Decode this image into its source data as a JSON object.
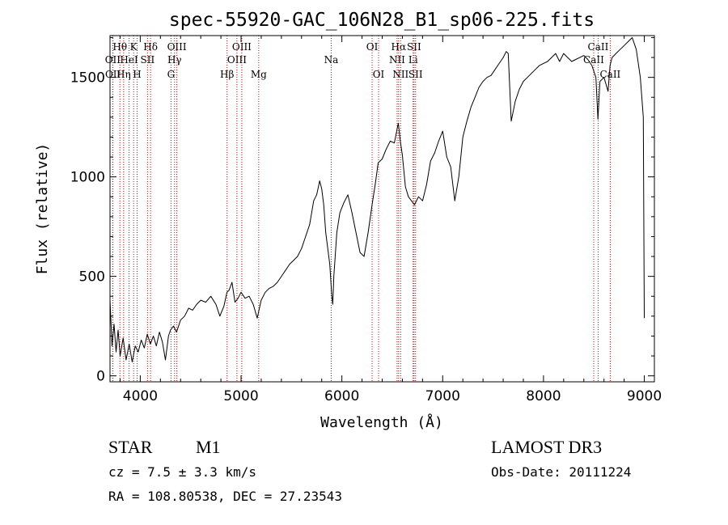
{
  "chart_data": {
    "type": "line",
    "title": "spec-55920-GAC_106N28_B1_sp06-225.fits",
    "xlabel": "Wavelength (Å)",
    "ylabel": "Flux (relative)",
    "xlim": [
      3700,
      9100
    ],
    "ylim": [
      -30,
      1710
    ],
    "x_ticks": [
      4000,
      5000,
      6000,
      7000,
      8000,
      9000
    ],
    "y_ticks": [
      0,
      500,
      1000,
      1500
    ],
    "grid": false,
    "line_color": "#000000",
    "marker_color": "#cc0000",
    "series": [
      {
        "name": "flux",
        "x": [
          3700,
          3720,
          3740,
          3760,
          3780,
          3800,
          3830,
          3860,
          3890,
          3920,
          3950,
          3980,
          4010,
          4040,
          4070,
          4100,
          4130,
          4160,
          4190,
          4220,
          4250,
          4280,
          4300,
          4330,
          4360,
          4400,
          4440,
          4480,
          4520,
          4560,
          4600,
          4650,
          4700,
          4750,
          4790,
          4830,
          4860,
          4880,
          4910,
          4940,
          4970,
          5000,
          5040,
          5080,
          5120,
          5160,
          5200,
          5240,
          5280,
          5320,
          5360,
          5400,
          5440,
          5480,
          5520,
          5560,
          5600,
          5640,
          5680,
          5720,
          5750,
          5780,
          5800,
          5820,
          5840,
          5860,
          5880,
          5900,
          5910,
          5920,
          5950,
          5980,
          6020,
          6060,
          6100,
          6140,
          6180,
          6220,
          6260,
          6300,
          6330,
          6360,
          6400,
          6440,
          6480,
          6520,
          6560,
          6580,
          6600,
          6630,
          6660,
          6690,
          6720,
          6760,
          6800,
          6840,
          6880,
          6920,
          6960,
          7000,
          7040,
          7080,
          7120,
          7160,
          7200,
          7240,
          7280,
          7320,
          7360,
          7400,
          7440,
          7480,
          7520,
          7560,
          7600,
          7630,
          7650,
          7680,
          7720,
          7760,
          7800,
          7840,
          7880,
          7920,
          7960,
          8000,
          8040,
          8080,
          8120,
          8160,
          8200,
          8240,
          8280,
          8320,
          8360,
          8400,
          8440,
          8480,
          8520,
          8540,
          8560,
          8600,
          8640,
          8660,
          8680,
          8720,
          8760,
          8800,
          8840,
          8880,
          8920,
          8960,
          8990,
          9000
        ],
        "y": [
          380,
          150,
          260,
          120,
          230,
          100,
          190,
          80,
          160,
          70,
          150,
          120,
          180,
          140,
          210,
          160,
          200,
          150,
          220,
          170,
          80,
          200,
          230,
          250,
          220,
          280,
          300,
          340,
          330,
          360,
          380,
          370,
          400,
          360,
          300,
          350,
          420,
          430,
          470,
          370,
          390,
          420,
          390,
          400,
          360,
          290,
          380,
          420,
          440,
          450,
          470,
          500,
          530,
          560,
          580,
          600,
          640,
          700,
          760,
          880,
          910,
          980,
          940,
          860,
          720,
          640,
          560,
          400,
          360,
          500,
          720,
          820,
          870,
          910,
          820,
          720,
          620,
          600,
          720,
          860,
          960,
          1070,
          1090,
          1140,
          1180,
          1170,
          1270,
          1180,
          1110,
          950,
          900,
          880,
          860,
          900,
          880,
          960,
          1080,
          1120,
          1180,
          1230,
          1100,
          1050,
          880,
          1000,
          1200,
          1280,
          1350,
          1400,
          1450,
          1480,
          1500,
          1510,
          1540,
          1570,
          1600,
          1630,
          1620,
          1280,
          1380,
          1440,
          1480,
          1500,
          1520,
          1540,
          1560,
          1570,
          1580,
          1600,
          1620,
          1580,
          1620,
          1600,
          1580,
          1590,
          1600,
          1610,
          1590,
          1560,
          1500,
          1290,
          1480,
          1500,
          1430,
          1560,
          1600,
          1620,
          1640,
          1660,
          1680,
          1700,
          1640,
          1500,
          1300,
          290
        ]
      }
    ],
    "line_markers": [
      {
        "label": "OII",
        "x": 3727,
        "row": 2
      },
      {
        "label": "OII",
        "x": 3729,
        "row": 3
      },
      {
        "label": "Hθ",
        "x": 3798,
        "row": 1
      },
      {
        "label": "Hη",
        "x": 3835,
        "row": 3
      },
      {
        "label": "HeI",
        "x": 3889,
        "row": 2
      },
      {
        "label": "K",
        "x": 3934,
        "row": 1
      },
      {
        "label": "SII",
        "x": 4072,
        "row": 2
      },
      {
        "label": "H",
        "x": 3969,
        "row": 3
      },
      {
        "label": "Hδ",
        "x": 4102,
        "row": 1
      },
      {
        "label": "OIII",
        "x": 4363,
        "row": 1
      },
      {
        "label": "Hγ",
        "x": 4340,
        "row": 2
      },
      {
        "label": "G",
        "x": 4305,
        "row": 3
      },
      {
        "label": "Hβ",
        "x": 4861,
        "row": 3
      },
      {
        "label": "OIII",
        "x": 4959,
        "row": 2
      },
      {
        "label": "OIII",
        "x": 5007,
        "row": 1
      },
      {
        "label": "Mg",
        "x": 5175,
        "row": 3
      },
      {
        "label": "Na",
        "x": 5894,
        "row": 2
      },
      {
        "label": "OI",
        "x": 6300,
        "row": 1
      },
      {
        "label": "OI",
        "x": 6364,
        "row": 3
      },
      {
        "label": "NII",
        "x": 6548,
        "row": 2
      },
      {
        "label": "Hα",
        "x": 6563,
        "row": 1
      },
      {
        "label": "NII",
        "x": 6583,
        "row": 3
      },
      {
        "label": "Li",
        "x": 6707,
        "row": 2
      },
      {
        "label": "SII",
        "x": 6716,
        "row": 1
      },
      {
        "label": "SII",
        "x": 6731,
        "row": 3
      },
      {
        "label": "CaII",
        "x": 8498,
        "row": 2
      },
      {
        "label": "CaII",
        "x": 8542,
        "row": 1
      },
      {
        "label": "CaII",
        "x": 8662,
        "row": 3
      }
    ]
  },
  "info": {
    "class": "STAR",
    "subclass": "M1",
    "survey": "LAMOST DR3",
    "cz": "cz = 7.5 ± 3.3 km/s",
    "obs_date": "Obs-Date: 20111224",
    "coords": "RA = 108.80538, DEC =  27.23543"
  }
}
